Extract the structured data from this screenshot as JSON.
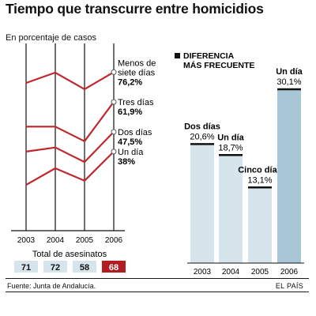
{
  "title": "Tiempo que transcurre entre homicidios",
  "subtitle": "En porcentaje de casos",
  "source": "Fuente: Junta de Andalucía.",
  "credit": "EL PAÍS",
  "colors": {
    "line": "#c0272d",
    "frame": "#111111",
    "bar": "#d6e4ec",
    "bar_highlight": "#a9c6d6",
    "total_box": "#d6e4ec",
    "total_box_highlight": "#b01c22"
  },
  "chart_data": [
    {
      "type": "line",
      "x": [
        "2003",
        "2004",
        "2005",
        "2006"
      ],
      "series": [
        {
          "name": "Menos de siete días",
          "values": [
            71,
            76,
            68,
            76.2
          ],
          "end_label": "76,2%"
        },
        {
          "name": "Tres días",
          "values": [
            50,
            50,
            43,
            61.9
          ],
          "end_label": "61,9%"
        },
        {
          "name": "Dos días",
          "values": [
            38,
            40,
            33,
            47.5
          ],
          "end_label": "47,5%"
        },
        {
          "name": "Un día",
          "values": [
            22,
            30,
            24,
            38
          ],
          "end_label": "38%"
        }
      ],
      "ylim": [
        0,
        90
      ],
      "totals_label": "Total de asesinatos",
      "totals": [
        {
          "year": "2003",
          "value": "71"
        },
        {
          "year": "2004",
          "value": "72"
        },
        {
          "year": "2005",
          "value": "58"
        },
        {
          "year": "2006",
          "value": "68",
          "highlight": true
        }
      ]
    },
    {
      "type": "bar",
      "title": "DIFERENCIA MÁS FRECUENTE",
      "categories": [
        "2003",
        "2004",
        "2005",
        "2006"
      ],
      "labels": [
        "Dos días",
        "Un día",
        "Cinco días",
        "Un día"
      ],
      "values": [
        20.6,
        18.7,
        13.1,
        30.1
      ],
      "value_labels": [
        "20,6%",
        "18,7%",
        "13,1%",
        "30,1%"
      ],
      "highlight_index": 3
    }
  ]
}
